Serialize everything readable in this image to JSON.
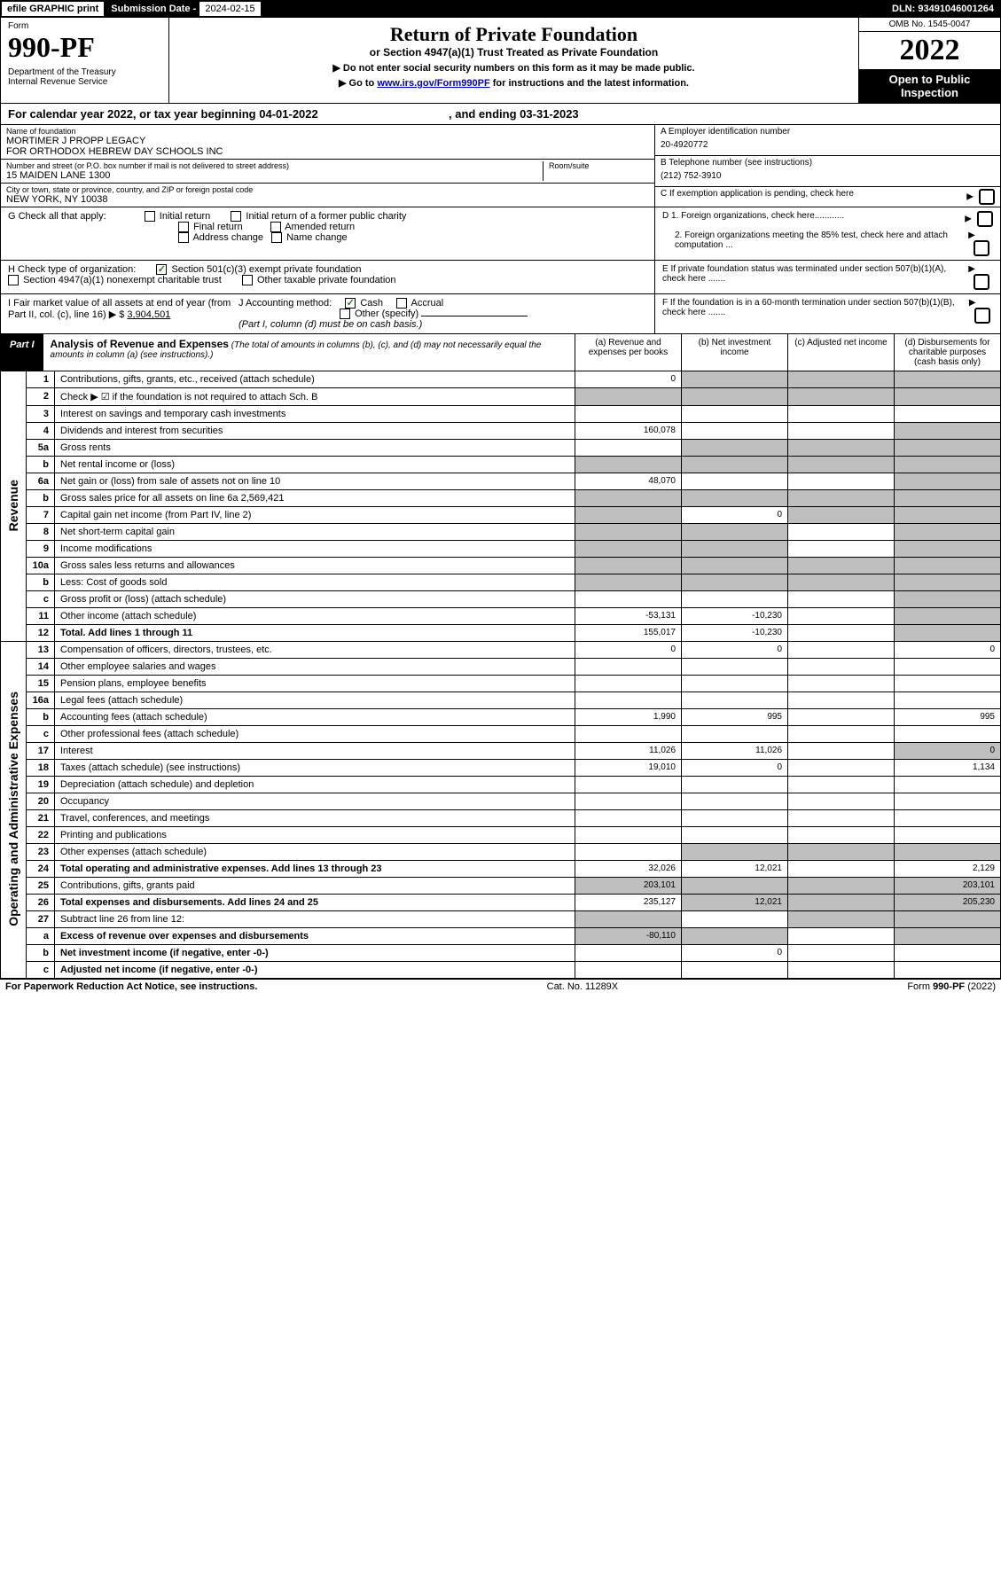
{
  "topbar": {
    "efile": "efile GRAPHIC print",
    "sub_lbl": "Submission Date - ",
    "sub_val": "2024-02-15",
    "dln": "DLN: 93491046001264"
  },
  "header": {
    "form": "Form",
    "num": "990-PF",
    "dept": "Department of the Treasury\nInternal Revenue Service",
    "title": "Return of Private Foundation",
    "sub": "or Section 4947(a)(1) Trust Treated as Private Foundation",
    "note1": "▶ Do not enter social security numbers on this form as it may be made public.",
    "note2_a": "▶ Go to ",
    "note2_link": "www.irs.gov/Form990PF",
    "note2_b": " for instructions and the latest information.",
    "omb": "OMB No. 1545-0047",
    "year": "2022",
    "open": "Open to Public Inspection"
  },
  "calyear": {
    "a": "For calendar year 2022, or tax year beginning ",
    "b": "04-01-2022",
    "c": ", and ending ",
    "d": "03-31-2023"
  },
  "info": {
    "name_lbl": "Name of foundation",
    "name_val": "MORTIMER J PROPP LEGACY\nFOR ORTHODOX HEBREW DAY SCHOOLS INC",
    "addr_lbl": "Number and street (or P.O. box number if mail is not delivered to street address)",
    "addr_val": "15 MAIDEN LANE 1300",
    "room_lbl": "Room/suite",
    "city_lbl": "City or town, state or province, country, and ZIP or foreign postal code",
    "city_val": "NEW YORK, NY  10038",
    "A_lbl": "A Employer identification number",
    "A_val": "20-4920772",
    "B_lbl": "B Telephone number (see instructions)",
    "B_val": "(212) 752-3910",
    "C_lbl": "C If exemption application is pending, check here",
    "D1": "D 1. Foreign organizations, check here............",
    "D2": "2. Foreign organizations meeting the 85% test, check here and attach computation ...",
    "E": "E  If private foundation status was terminated under section 507(b)(1)(A), check here .......",
    "F": "F  If the foundation is in a 60-month termination under section 507(b)(1)(B), check here .......",
    "G_lbl": "G Check all that apply:",
    "G_opts": [
      "Initial return",
      "Initial return of a former public charity",
      "Final return",
      "Amended return",
      "Address change",
      "Name change"
    ],
    "H_lbl": "H Check type of organization:",
    "H_a": "Section 501(c)(3) exempt private foundation",
    "H_b": "Section 4947(a)(1) nonexempt charitable trust",
    "H_c": "Other taxable private foundation",
    "I_a": "I Fair market value of all assets at end of year (from Part II, col. (c), line 16) ▶ $ ",
    "I_val": "3,904,501",
    "J_lbl": "J Accounting method:",
    "J_cash": "Cash",
    "J_acc": "Accrual",
    "J_other": "Other (specify)",
    "J_note": "(Part I, column (d) must be on cash basis.)"
  },
  "part1": {
    "tag": "Part I",
    "title": "Analysis of Revenue and Expenses",
    "note": "(The total of amounts in columns (b), (c), and (d) may not necessarily equal the amounts in column (a) (see instructions).)",
    "col_a": "(a)   Revenue and expenses per books",
    "col_b": "(b)   Net investment income",
    "col_c": "(c)   Adjusted net income",
    "col_d": "(d)   Disbursements for charitable purposes (cash basis only)"
  },
  "sections": {
    "rev": "Revenue",
    "op": "Operating and Administrative Expenses"
  },
  "rows": [
    {
      "n": "1",
      "d": "Contributions, gifts, grants, etc., received (attach schedule)",
      "a": "0"
    },
    {
      "n": "2",
      "d": "Check ▶ ☑ if the foundation is not required to attach Sch. B"
    },
    {
      "n": "3",
      "d": "Interest on savings and temporary cash investments"
    },
    {
      "n": "4",
      "d": "Dividends and interest from securities",
      "a": "160,078"
    },
    {
      "n": "5a",
      "d": "Gross rents"
    },
    {
      "n": "b",
      "d": "Net rental income or (loss)"
    },
    {
      "n": "6a",
      "d": "Net gain or (loss) from sale of assets not on line 10",
      "a": "48,070"
    },
    {
      "n": "b",
      "d": "Gross sales price for all assets on line 6a",
      "inline": "2,569,421"
    },
    {
      "n": "7",
      "d": "Capital gain net income (from Part IV, line 2)",
      "b": "0"
    },
    {
      "n": "8",
      "d": "Net short-term capital gain"
    },
    {
      "n": "9",
      "d": "Income modifications"
    },
    {
      "n": "10a",
      "d": "Gross sales less returns and allowances"
    },
    {
      "n": "b",
      "d": "Less: Cost of goods sold"
    },
    {
      "n": "c",
      "d": "Gross profit or (loss) (attach schedule)"
    },
    {
      "n": "11",
      "d": "Other income (attach schedule)",
      "a": "-53,131",
      "b": "-10,230"
    },
    {
      "n": "12",
      "d": "Total. Add lines 1 through 11",
      "a": "155,017",
      "b": "-10,230",
      "bold": true
    },
    {
      "n": "13",
      "d": "Compensation of officers, directors, trustees, etc.",
      "a": "0",
      "b": "0",
      "dd": "0"
    },
    {
      "n": "14",
      "d": "Other employee salaries and wages"
    },
    {
      "n": "15",
      "d": "Pension plans, employee benefits"
    },
    {
      "n": "16a",
      "d": "Legal fees (attach schedule)"
    },
    {
      "n": "b",
      "d": "Accounting fees (attach schedule)",
      "a": "1,990",
      "b": "995",
      "dd": "995"
    },
    {
      "n": "c",
      "d": "Other professional fees (attach schedule)"
    },
    {
      "n": "17",
      "d": "Interest",
      "a": "11,026",
      "b": "11,026",
      "dd": "0"
    },
    {
      "n": "18",
      "d": "Taxes (attach schedule) (see instructions)",
      "a": "19,010",
      "b": "0",
      "dd": "1,134"
    },
    {
      "n": "19",
      "d": "Depreciation (attach schedule) and depletion"
    },
    {
      "n": "20",
      "d": "Occupancy"
    },
    {
      "n": "21",
      "d": "Travel, conferences, and meetings"
    },
    {
      "n": "22",
      "d": "Printing and publications"
    },
    {
      "n": "23",
      "d": "Other expenses (attach schedule)"
    },
    {
      "n": "24",
      "d": "Total operating and administrative expenses. Add lines 13 through 23",
      "a": "32,026",
      "b": "12,021",
      "dd": "2,129",
      "bold": true
    },
    {
      "n": "25",
      "d": "Contributions, gifts, grants paid",
      "a": "203,101",
      "dd": "203,101"
    },
    {
      "n": "26",
      "d": "Total expenses and disbursements. Add lines 24 and 25",
      "a": "235,127",
      "b": "12,021",
      "dd": "205,230",
      "bold": true
    },
    {
      "n": "27",
      "d": "Subtract line 26 from line 12:"
    },
    {
      "n": "a",
      "d": "Excess of revenue over expenses and disbursements",
      "a": "-80,110",
      "bold": true
    },
    {
      "n": "b",
      "d": "Net investment income (if negative, enter -0-)",
      "b": "0",
      "bold": true
    },
    {
      "n": "c",
      "d": "Adjusted net income (if negative, enter -0-)",
      "bold": true
    }
  ],
  "footer": {
    "l": "For Paperwork Reduction Act Notice, see instructions.",
    "m": "Cat. No. 11289X",
    "r": "Form 990-PF (2022)"
  }
}
